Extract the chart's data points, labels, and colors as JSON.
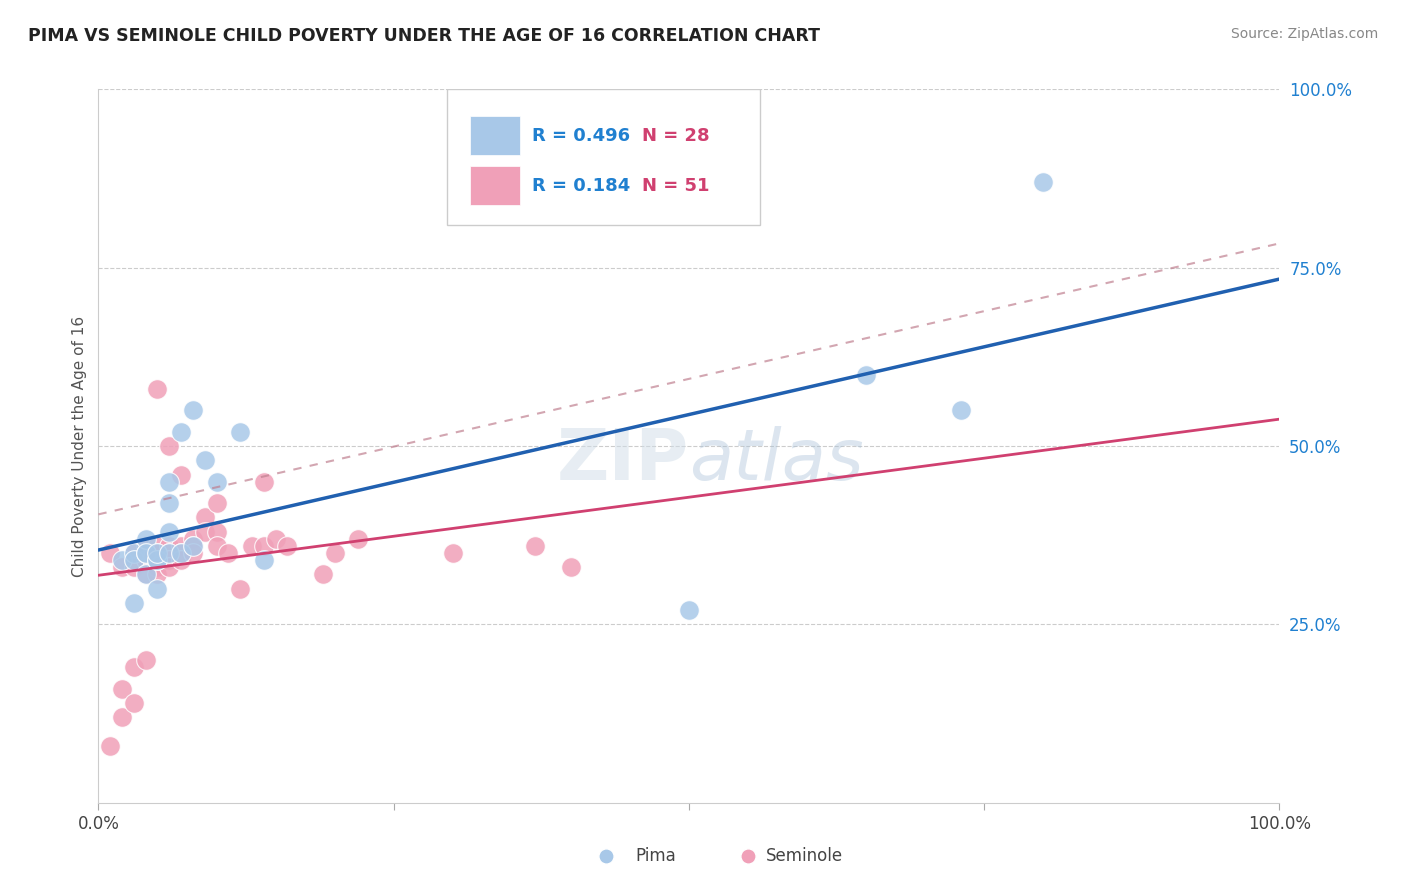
{
  "title": "PIMA VS SEMINOLE CHILD POVERTY UNDER THE AGE OF 16 CORRELATION CHART",
  "source": "Source: ZipAtlas.com",
  "ylabel": "Child Poverty Under the Age of 16",
  "xlim": [
    0,
    1
  ],
  "ylim": [
    0,
    1
  ],
  "pima_R": 0.496,
  "pima_N": 28,
  "seminole_R": 0.184,
  "seminole_N": 51,
  "pima_color": "#a8c8e8",
  "seminole_color": "#f0a0b8",
  "pima_line_color": "#2060b0",
  "seminole_line_color": "#d04070",
  "legend_R_color": "#2080d0",
  "legend_N_color": "#d04070",
  "background_color": "#ffffff",
  "grid_color": "#cccccc",
  "pima_x": [
    0.02,
    0.03,
    0.03,
    0.03,
    0.04,
    0.04,
    0.04,
    0.04,
    0.05,
    0.05,
    0.05,
    0.05,
    0.06,
    0.06,
    0.06,
    0.06,
    0.07,
    0.07,
    0.08,
    0.08,
    0.09,
    0.1,
    0.12,
    0.14,
    0.5,
    0.65,
    0.73,
    0.8
  ],
  "pima_y": [
    0.34,
    0.35,
    0.34,
    0.28,
    0.35,
    0.37,
    0.35,
    0.32,
    0.34,
    0.34,
    0.35,
    0.3,
    0.42,
    0.38,
    0.35,
    0.45,
    0.52,
    0.35,
    0.55,
    0.36,
    0.48,
    0.45,
    0.52,
    0.34,
    0.27,
    0.6,
    0.55,
    0.87
  ],
  "seminole_x": [
    0.01,
    0.01,
    0.02,
    0.02,
    0.02,
    0.03,
    0.03,
    0.03,
    0.03,
    0.03,
    0.04,
    0.04,
    0.04,
    0.04,
    0.04,
    0.05,
    0.05,
    0.05,
    0.05,
    0.05,
    0.05,
    0.06,
    0.06,
    0.06,
    0.06,
    0.06,
    0.07,
    0.07,
    0.07,
    0.07,
    0.08,
    0.08,
    0.08,
    0.09,
    0.09,
    0.1,
    0.1,
    0.1,
    0.11,
    0.12,
    0.13,
    0.14,
    0.14,
    0.15,
    0.16,
    0.19,
    0.2,
    0.22,
    0.3,
    0.37,
    0.4
  ],
  "seminole_y": [
    0.35,
    0.08,
    0.33,
    0.16,
    0.12,
    0.35,
    0.34,
    0.33,
    0.19,
    0.14,
    0.36,
    0.35,
    0.34,
    0.32,
    0.2,
    0.36,
    0.35,
    0.34,
    0.33,
    0.32,
    0.58,
    0.36,
    0.35,
    0.34,
    0.33,
    0.5,
    0.46,
    0.36,
    0.35,
    0.34,
    0.37,
    0.36,
    0.35,
    0.4,
    0.38,
    0.42,
    0.38,
    0.36,
    0.35,
    0.3,
    0.36,
    0.45,
    0.36,
    0.37,
    0.36,
    0.32,
    0.35,
    0.37,
    0.35,
    0.36,
    0.33
  ]
}
